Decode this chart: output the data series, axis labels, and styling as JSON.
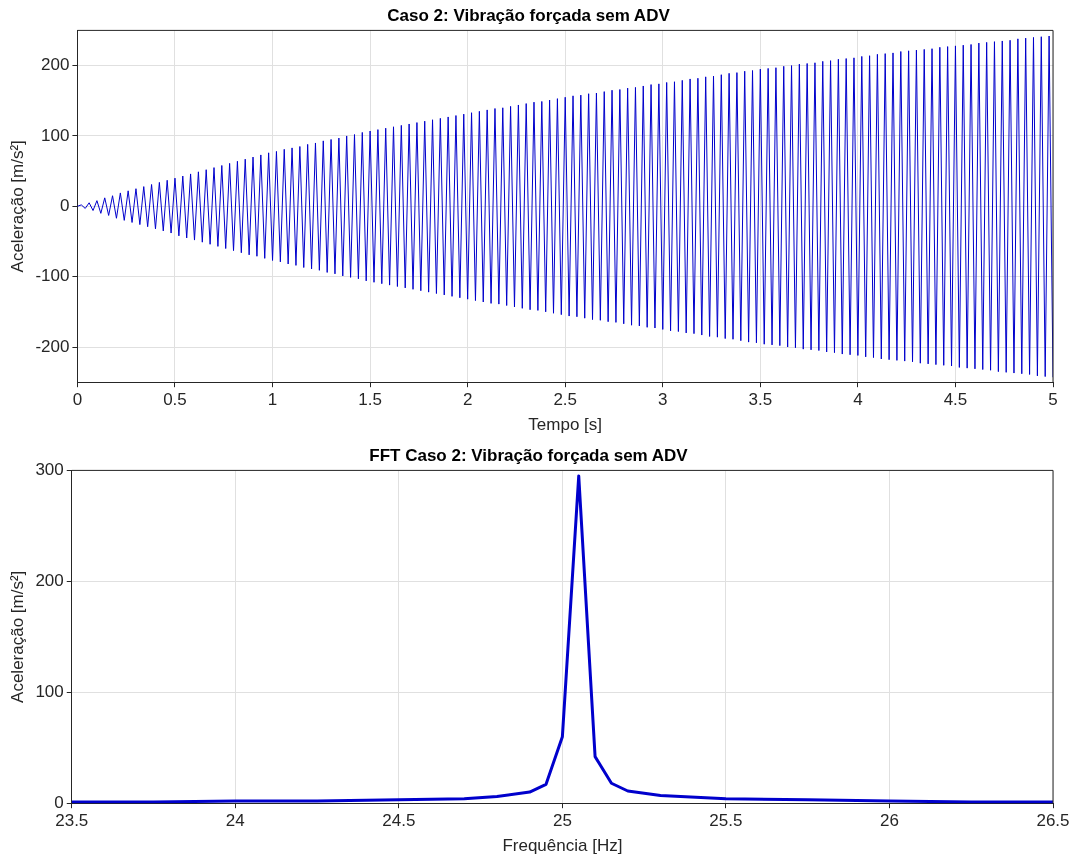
{
  "chart_data": [
    {
      "type": "line",
      "title": "Caso 2: Vibração forçada sem ADV",
      "xlabel": "Tempo [s]",
      "ylabel": "Aceleração [m/s²]",
      "xlim": [
        0,
        5
      ],
      "xticks": [
        0,
        0.5,
        1,
        1.5,
        2,
        2.5,
        3,
        3.5,
        4,
        4.5,
        5
      ],
      "ylim": [
        -250,
        250
      ],
      "yticks": [
        -200,
        -100,
        0,
        100,
        200
      ],
      "grid": true,
      "marker": "none",
      "line_style": "solid",
      "x": [
        0,
        0.02,
        0.04,
        0.06,
        0.08,
        0.1,
        0.12,
        0.14,
        0.16,
        0.18,
        0.2,
        0.22,
        0.24,
        0.26,
        0.28,
        0.3,
        0.32,
        0.34,
        0.36,
        0.38,
        0.4,
        0.42,
        0.44,
        0.46,
        0.48,
        0.5,
        0.52,
        0.54,
        0.56,
        0.58,
        0.6,
        0.62,
        0.64,
        0.66,
        0.68,
        0.7,
        0.72,
        0.74,
        0.76,
        0.78,
        0.8,
        0.82,
        0.84,
        0.86,
        0.88,
        0.9,
        0.92,
        0.94,
        0.96,
        0.98,
        1,
        1.02,
        1.04,
        1.06,
        1.08,
        1.1,
        1.12,
        1.14,
        1.16,
        1.18,
        1.2,
        1.22,
        1.24,
        1.26,
        1.28,
        1.3,
        1.32,
        1.34,
        1.36,
        1.38,
        1.4,
        1.42,
        1.44,
        1.46,
        1.48,
        1.5,
        1.52,
        1.54,
        1.56,
        1.58,
        1.6,
        1.62,
        1.64,
        1.66,
        1.68,
        1.7,
        1.72,
        1.74,
        1.76,
        1.78,
        1.8,
        1.82,
        1.84,
        1.86,
        1.88,
        1.9,
        1.92,
        1.94,
        1.96,
        1.98,
        2,
        2.02,
        2.04,
        2.06,
        2.08,
        2.1,
        2.12,
        2.14,
        2.16,
        2.18,
        2.2,
        2.22,
        2.24,
        2.26,
        2.28,
        2.3,
        2.32,
        2.34,
        2.36,
        2.38,
        2.4,
        2.42,
        2.44,
        2.46,
        2.48,
        2.5,
        2.52,
        2.54,
        2.56,
        2.58,
        2.6,
        2.62,
        2.64,
        2.66,
        2.68,
        2.7,
        2.72,
        2.74,
        2.76,
        2.78,
        2.8,
        2.82,
        2.84,
        2.86,
        2.88,
        2.9,
        2.92,
        2.94,
        2.96,
        2.98,
        3,
        3.02,
        3.04,
        3.06,
        3.08,
        3.1,
        3.12,
        3.14,
        3.16,
        3.18,
        3.2,
        3.22,
        3.24,
        3.26,
        3.28,
        3.3,
        3.32,
        3.34,
        3.36,
        3.38,
        3.4,
        3.42,
        3.44,
        3.46,
        3.48,
        3.5,
        3.52,
        3.54,
        3.56,
        3.58,
        3.6,
        3.62,
        3.64,
        3.66,
        3.68,
        3.7,
        3.72,
        3.74,
        3.76,
        3.78,
        3.8,
        3.82,
        3.84,
        3.86,
        3.88,
        3.9,
        3.92,
        3.94,
        3.96,
        3.98,
        4,
        4.02,
        4.04,
        4.06,
        4.08,
        4.1,
        4.12,
        4.14,
        4.16,
        4.18,
        4.2,
        4.22,
        4.24,
        4.26,
        4.28,
        4.3,
        4.32,
        4.34,
        4.36,
        4.38,
        4.4,
        4.42,
        4.44,
        4.46,
        4.48,
        4.5,
        4.52,
        4.54,
        4.56,
        4.58,
        4.6,
        4.62,
        4.64,
        4.66,
        4.68,
        4.7,
        4.72,
        4.74,
        4.76,
        4.78,
        4.8,
        4.82,
        4.84,
        4.86,
        4.88,
        4.9,
        4.92,
        4.94,
        4.96,
        4.98,
        5
      ],
      "series": [
        {
          "color": "#0000cc",
          "values": [
            0,
            2,
            -3,
            5,
            -6,
            8,
            -10,
            12,
            -13,
            15,
            -17,
            19,
            -20,
            22,
            -23,
            25,
            -26,
            28,
            -29,
            31,
            -32,
            34,
            -35,
            37,
            -38,
            40,
            -42,
            43,
            -45,
            46,
            -48,
            49,
            -51,
            52,
            -54,
            55,
            -57,
            58,
            -60,
            61,
            -63,
            64,
            -66,
            67,
            -69,
            70,
            -71,
            73,
            -74,
            76,
            -77,
            78,
            -79,
            81,
            -82,
            83,
            -84,
            85,
            -87,
            88,
            -89,
            90,
            -91,
            93,
            -94,
            95,
            -96,
            97,
            -99,
            100,
            -101,
            102,
            -103,
            105,
            -106,
            107,
            -108,
            109,
            -110,
            111,
            -112,
            113,
            -114,
            115,
            -116,
            117,
            -118,
            119,
            -120,
            121,
            -122,
            123,
            -124,
            125,
            -126,
            127,
            -128,
            129,
            -130,
            131,
            -132,
            133,
            -134,
            135,
            -136,
            137,
            -138,
            139,
            -139,
            140,
            -141,
            142,
            -143,
            144,
            -145,
            146,
            -147,
            148,
            -148,
            149,
            -150,
            151,
            -152,
            153,
            -154,
            155,
            -156,
            157,
            -157,
            158,
            -159,
            160,
            -161,
            161,
            -162,
            163,
            -164,
            165,
            -165,
            166,
            -167,
            168,
            -169,
            169,
            -170,
            171,
            -172,
            173,
            -173,
            174,
            -175,
            176,
            -177,
            177,
            -178,
            179,
            -180,
            181,
            -181,
            182,
            -183,
            184,
            -185,
            185,
            -186,
            187,
            -188,
            189,
            -189,
            190,
            -191,
            192,
            -193,
            193,
            -194,
            195,
            -196,
            196,
            -197,
            197,
            -198,
            199,
            -200,
            200,
            -201,
            202,
            -203,
            203,
            -204,
            204,
            -205,
            206,
            -207,
            207,
            -208,
            209,
            -210,
            210,
            -211,
            211,
            -212,
            213,
            -214,
            214,
            -215,
            216,
            -217,
            217,
            -218,
            218,
            -219,
            220,
            -220,
            221,
            -221,
            222,
            -223,
            223,
            -224,
            224,
            -225,
            226,
            -226,
            227,
            -227,
            228,
            -229,
            229,
            -230,
            230,
            -231,
            232,
            -232,
            233,
            -233,
            234,
            -235,
            235,
            -236,
            236,
            -237,
            238,
            -238,
            239,
            -239,
            240,
            -241,
            241,
            -242,
            242,
            -243
          ]
        }
      ]
    },
    {
      "type": "line",
      "title": "FFT Caso 2: Vibração forçada sem ADV",
      "xlabel": "Frequência [Hz]",
      "ylabel": "Aceleração [m/s²]",
      "xlim": [
        23.5,
        26.5
      ],
      "xticks": [
        23.5,
        24,
        24.5,
        25,
        25.5,
        26,
        26.5
      ],
      "ylim": [
        0,
        300
      ],
      "yticks": [
        0,
        100,
        200,
        300
      ],
      "grid": true,
      "marker": "none",
      "line_style": "solid",
      "x": [
        23.5,
        23.75,
        24,
        24.25,
        24.5,
        24.7,
        24.8,
        24.9,
        24.95,
        25,
        25.05,
        25.1,
        25.15,
        25.2,
        25.3,
        25.5,
        25.75,
        26,
        26.25,
        26.5
      ],
      "series": [
        {
          "color": "#0000cc",
          "values": [
            1,
            1,
            2,
            2,
            3,
            4,
            6,
            10,
            17,
            60,
            295,
            42,
            18,
            11,
            7,
            4,
            3,
            2,
            1,
            1
          ]
        }
      ]
    }
  ]
}
